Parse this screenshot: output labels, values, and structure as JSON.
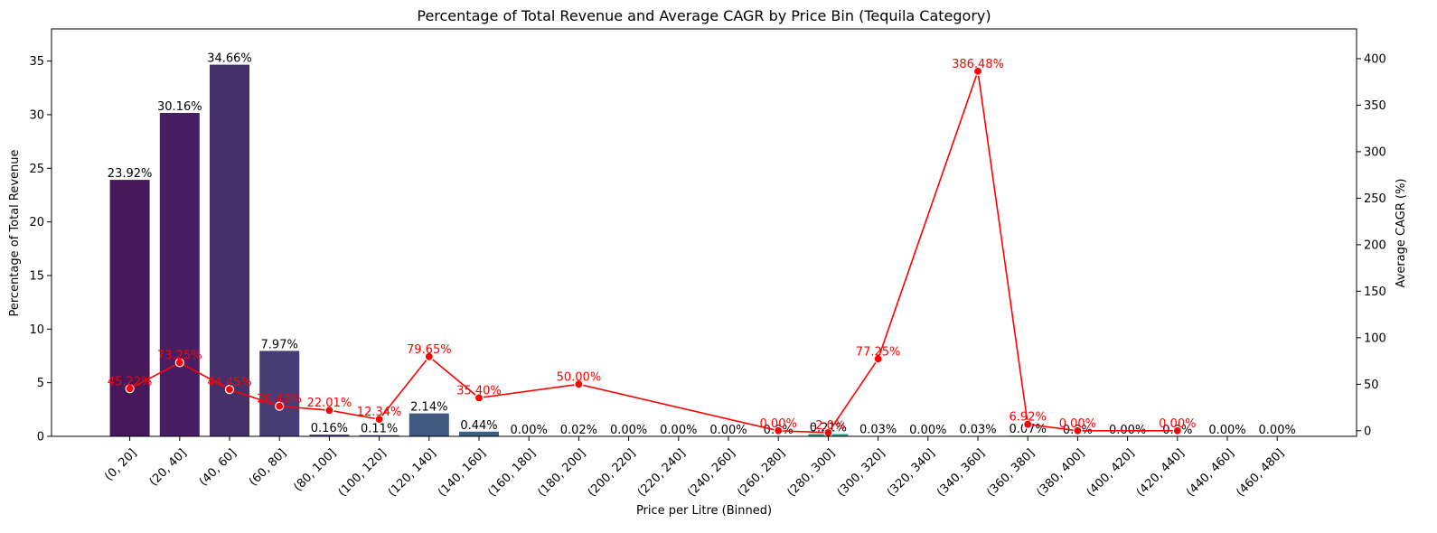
{
  "chart_data": {
    "type": "bar",
    "title": "Percentage of Total Revenue and Average CAGR by Price Bin (Tequila Category)",
    "xlabel": "Price per Litre (Binned)",
    "ylabel": "Percentage of Total Revenue",
    "y2label": "Average CAGR (%)",
    "ylim": [
      0,
      38
    ],
    "y2lim": [
      -6,
      432
    ],
    "yticks": [
      0,
      5,
      10,
      15,
      20,
      25,
      30,
      35
    ],
    "y2ticks": [
      0,
      50,
      100,
      150,
      200,
      250,
      300,
      350,
      400
    ],
    "categories": [
      "(0, 20]",
      "(20, 40]",
      "(40, 60]",
      "(60, 80]",
      "(80, 100]",
      "(100, 120]",
      "(120, 140]",
      "(140, 160]",
      "(160, 180]",
      "(180, 200]",
      "(200, 220]",
      "(220, 240]",
      "(240, 260]",
      "(260, 280]",
      "(280, 300]",
      "(300, 320]",
      "(320, 340]",
      "(340, 360]",
      "(360, 380]",
      "(380, 400]",
      "(400, 420]",
      "(420, 440]",
      "(440, 460]",
      "(460, 480]"
    ],
    "series": [
      {
        "type": "bar",
        "axis": "left",
        "values": [
          23.92,
          30.16,
          34.66,
          7.97,
          0.16,
          0.11,
          2.14,
          0.44,
          0.0,
          0.02,
          0.0,
          0.0,
          0.0,
          0.0,
          0.21,
          0.03,
          0.0,
          0.03,
          0.07,
          0.0,
          0.0,
          0.0,
          0.0,
          0.0
        ],
        "labels": [
          "23.92%",
          "30.16%",
          "34.66%",
          "7.97%",
          "0.16%",
          "0.11%",
          "2.14%",
          "0.44%",
          "0.00%",
          "0.02%",
          "0.00%",
          "0.00%",
          "0.00%",
          "0.0%",
          "0.21%",
          "0.03%",
          "0.00%",
          "0.03%",
          "0.07%",
          "0.0%",
          "0.00%",
          "0.0%",
          "0.00%",
          "0.00%"
        ],
        "colors": [
          "#46185a",
          "#471d63",
          "#46306a",
          "#473d76",
          "#46427a",
          "#44467b",
          "#3f5a7e",
          "#3d5f80",
          "#3a6b86",
          "#38748a",
          "#357c8d",
          "#32858d",
          "#2f8d8c",
          "#2d9689",
          "#2d9f84",
          "#33a87d",
          "#40b175",
          "#52ba68",
          "#68c25b",
          "#80c94c",
          "#9ad03e",
          "#b5d631",
          "#d0da27",
          "#e8dd23"
        ]
      },
      {
        "type": "line",
        "axis": "right",
        "color": "#ff0000",
        "points": [
          {
            "category": "(0, 20]",
            "value": 45.22,
            "label": "45.22%"
          },
          {
            "category": "(20, 40]",
            "value": 73.25,
            "label": "73.25%"
          },
          {
            "category": "(40, 60]",
            "value": 44.45,
            "label": "44.45%"
          },
          {
            "category": "(60, 80]",
            "value": 26.43,
            "label": "26.43%"
          },
          {
            "category": "(80, 100]",
            "value": 22.01,
            "label": "22.01%"
          },
          {
            "category": "(100, 120]",
            "value": 12.34,
            "label": "12.34%"
          },
          {
            "category": "(120, 140]",
            "value": 79.65,
            "label": "79.65%"
          },
          {
            "category": "(140, 160]",
            "value": 35.4,
            "label": "35.40%"
          },
          {
            "category": "(180, 200]",
            "value": 50.0,
            "label": "50.00%"
          },
          {
            "category": "(260, 280]",
            "value": 0.0,
            "label": "0.00%"
          },
          {
            "category": "(280, 300]",
            "value": -2.0,
            "label": "-2.0%"
          },
          {
            "category": "(300, 320]",
            "value": 77.25,
            "label": "77.25%"
          },
          {
            "category": "(340, 360]",
            "value": 386.48,
            "label": "386.48%"
          },
          {
            "category": "(360, 380]",
            "value": 6.92,
            "label": "6.92%"
          },
          {
            "category": "(380, 400]",
            "value": 0.0,
            "label": "0.00%"
          },
          {
            "category": "(420, 440]",
            "value": 0.0,
            "label": "0.00%"
          }
        ]
      }
    ],
    "grid": false,
    "legend": "none"
  }
}
